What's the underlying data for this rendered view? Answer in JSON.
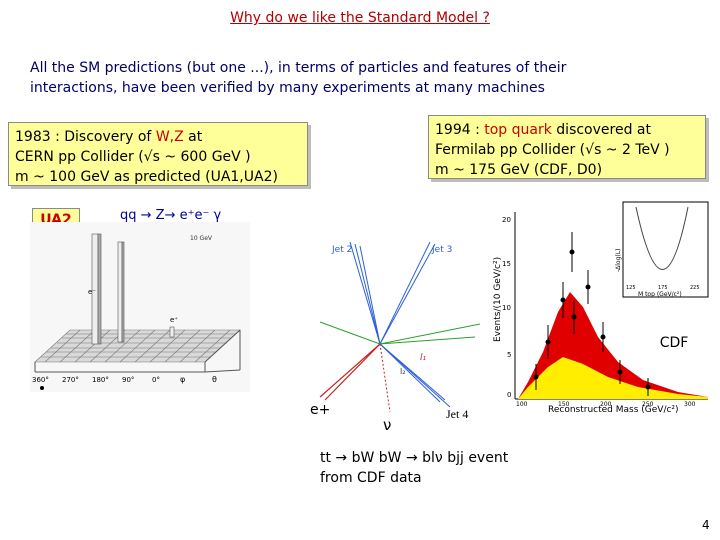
{
  "slide": {
    "title": "Why do we like the Standard Model ?",
    "intro_line1": "All the SM predictions (but one ...), in terms of  particles and features of their",
    "intro_line2": "interactions, have been verified by many experiments at many machines",
    "box_1983": {
      "l1_pre": "1983 : Discovery of  ",
      "l1_hl": "W,Z",
      "l1_post": "  at",
      "l2": "CERN pp Collider (√s ~ 600 GeV )",
      "l3": "m ~ 100 GeV  as  predicted (UA1,UA2)"
    },
    "box_1994": {
      "l1_pre": "1994 : ",
      "l1_hl": "top quark",
      "l1_post": " discovered at",
      "l2": "Fermilab pp Collider (√s ~ 2 TeV )",
      "l3": "m ~ 175 GeV (CDF, D0)"
    },
    "ua2_tag": "UA2",
    "reaction": "qq → Z→ e⁺e⁻ γ",
    "event_labels": {
      "jet2": "Jet 2",
      "jet3": "Jet 3",
      "jet4": "Jet 4",
      "l1": "l₁",
      "l2": "l₂",
      "eplus": "e+",
      "nu": "ν"
    },
    "cdf_label": "CDF",
    "cdf_plot": {
      "ylabel": "Events/(10 GeV/c²)",
      "xlabel": "Reconstructed Mass (GeV/c²)",
      "yticks": [
        "0",
        "5",
        "10",
        "15",
        "20"
      ],
      "xticks": [
        "100",
        "150",
        "200",
        "250",
        "300"
      ],
      "inset_ylabel": "-Δlog(L)",
      "inset_xlabel": "M top (GeV/c²)",
      "inset_xticks": [
        "125",
        "175",
        "225"
      ]
    },
    "lego_labels": {
      "top_legend": "10 GeV",
      "phi_ticks": [
        "360°",
        "270°",
        "180°",
        "90°",
        "0°"
      ],
      "theta": "θ",
      "phi": "φ",
      "e1": "e⁻",
      "e2": "e⁺"
    },
    "event_caption_l1": "tt → bW bW → blν bjj event",
    "event_caption_l2": "from CDF data",
    "page_number": "4",
    "colors": {
      "title": "#b00000",
      "intro": "#000066",
      "box_bg": "#ffff99",
      "highlight": "#c80000",
      "signal_fill": "#e00000",
      "background_fill": "#ffee00"
    }
  }
}
